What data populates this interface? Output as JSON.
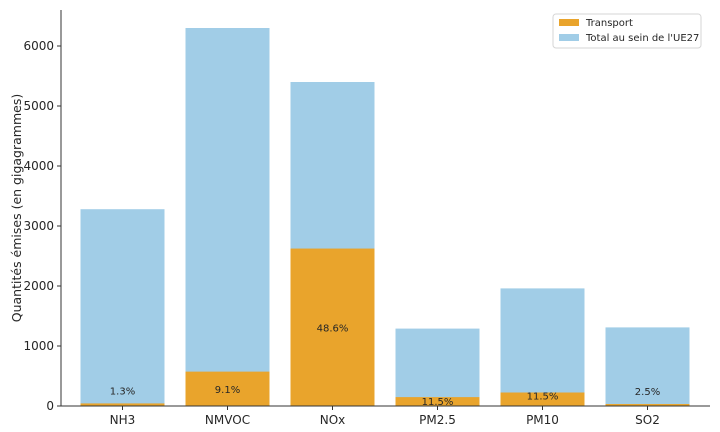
{
  "chart_data": {
    "type": "bar",
    "stacked": false,
    "categories": [
      "NH3",
      "NMVOC",
      "NOx",
      "PM2.5",
      "PM10",
      "SO2"
    ],
    "series": [
      {
        "name": "Total au sein de l'UE27",
        "color": "#a1cde7",
        "values": [
          3280,
          6300,
          5400,
          1290,
          1960,
          1310
        ]
      },
      {
        "name": "Transport",
        "color": "#e9a42c",
        "values": [
          43,
          573,
          2624,
          148,
          225,
          33
        ]
      }
    ],
    "data_labels": [
      "1.3%",
      "9.1%",
      "48.6%",
      "11.5%",
      "11.5%",
      "2.5%"
    ],
    "xlabel": "",
    "ylabel": "Quantités émises (en gigagrammes)",
    "ylim": [
      0,
      6600
    ],
    "yticks": [
      0,
      1000,
      2000,
      3000,
      4000,
      5000,
      6000
    ],
    "grid": false,
    "legend_position": "top-right",
    "legend_order": [
      "Transport",
      "Total au sein de l'UE27"
    ]
  }
}
